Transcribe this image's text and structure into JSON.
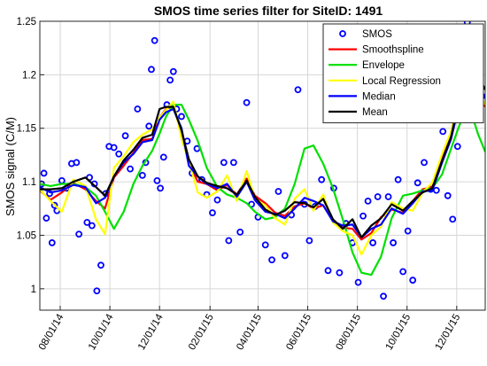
{
  "chart_data": {
    "type": "line",
    "title": "SMOS time series filter for SiteID: 1491",
    "xlabel": "",
    "ylabel": "SMOS signal (C/M)",
    "xlim": [
      "2014-07-07",
      "2016-01-05"
    ],
    "ylim": [
      0.98,
      1.25
    ],
    "yticks": [
      1,
      1.05,
      1.1,
      1.15,
      1.2,
      1.25
    ],
    "ytick_labels": [
      "1",
      "1.05",
      "1.1",
      "1.15",
      "1.2",
      "1.25"
    ],
    "xticks": [
      "2014-08-01",
      "2014-10-01",
      "2014-12-01",
      "2015-02-01",
      "2015-04-01",
      "2015-06-01",
      "2015-08-01",
      "2015-10-01",
      "2015-12-01"
    ],
    "xtick_labels": [
      "08/01/14",
      "10/01/14",
      "12/01/14",
      "02/01/15",
      "04/01/15",
      "06/01/15",
      "08/01/15",
      "10/01/15",
      "12/01/15"
    ],
    "grid": true,
    "legend_position": "top-right",
    "series": [
      {
        "name": "SMOS",
        "style": "markers",
        "color": "#0000ff",
        "x": [
          "2014-07-09",
          "2014-07-12",
          "2014-07-15",
          "2014-07-19",
          "2014-07-22",
          "2014-07-25",
          "2014-07-28",
          "2014-08-03",
          "2014-08-09",
          "2014-08-15",
          "2014-08-21",
          "2014-08-24",
          "2014-09-03",
          "2014-09-06",
          "2014-09-09",
          "2014-09-12",
          "2014-09-15",
          "2014-09-20",
          "2014-09-26",
          "2014-09-30",
          "2014-10-06",
          "2014-10-12",
          "2014-10-20",
          "2014-10-26",
          "2014-11-04",
          "2014-11-10",
          "2014-11-14",
          "2014-11-18",
          "2014-11-21",
          "2014-11-25",
          "2014-11-28",
          "2014-12-02",
          "2014-12-06",
          "2014-12-10",
          "2014-12-14",
          "2014-12-18",
          "2014-12-22",
          "2014-12-28",
          "2015-01-04",
          "2015-01-10",
          "2015-01-16",
          "2015-01-22",
          "2015-01-28",
          "2015-02-04",
          "2015-02-10",
          "2015-02-18",
          "2015-02-24",
          "2015-03-02",
          "2015-03-10",
          "2015-03-18",
          "2015-03-24",
          "2015-04-01",
          "2015-04-10",
          "2015-04-18",
          "2015-04-26",
          "2015-05-04",
          "2015-05-12",
          "2015-05-20",
          "2015-05-28",
          "2015-06-03",
          "2015-06-10",
          "2015-06-18",
          "2015-06-26",
          "2015-07-03",
          "2015-07-10",
          "2015-07-18",
          "2015-07-26",
          "2015-08-02",
          "2015-08-08",
          "2015-08-14",
          "2015-08-20",
          "2015-08-26",
          "2015-09-02",
          "2015-09-08",
          "2015-09-14",
          "2015-09-20",
          "2015-09-26",
          "2015-10-02",
          "2015-10-08",
          "2015-10-14",
          "2015-10-22",
          "2015-10-30",
          "2015-11-06",
          "2015-11-14",
          "2015-11-20",
          "2015-11-26",
          "2015-12-02",
          "2015-12-08",
          "2015-12-14",
          "2015-12-20",
          "2015-12-26",
          "2016-01-01"
        ],
        "values": [
          1.098,
          1.108,
          1.066,
          1.089,
          1.043,
          1.078,
          1.073,
          1.101,
          1.094,
          1.117,
          1.118,
          1.051,
          1.062,
          1.104,
          1.059,
          1.098,
          0.998,
          1.022,
          1.089,
          1.133,
          1.132,
          1.126,
          1.143,
          1.112,
          1.168,
          1.106,
          1.118,
          1.152,
          1.205,
          1.232,
          1.101,
          1.094,
          1.123,
          1.172,
          1.195,
          1.203,
          1.168,
          1.161,
          1.138,
          1.108,
          1.131,
          1.102,
          1.088,
          1.071,
          1.083,
          1.118,
          1.045,
          1.118,
          1.053,
          1.174,
          1.079,
          1.067,
          1.041,
          1.027,
          1.091,
          1.031,
          1.069,
          1.186,
          1.079,
          1.045,
          1.077,
          1.102,
          1.017,
          1.094,
          1.015,
          1.061,
          1.043,
          1.006,
          1.068,
          1.082,
          1.043,
          1.086,
          0.993,
          1.086,
          1.043,
          1.102,
          1.016,
          1.054,
          1.008,
          1.099,
          1.118,
          1.093,
          1.092,
          1.147,
          1.087,
          1.065,
          1.133,
          1.215,
          1.249,
          1.223,
          1.196,
          1.18
        ]
      },
      {
        "name": "Smoothspline",
        "style": "line",
        "color": "#ff0000",
        "x": [
          "2014-07-07",
          "2014-07-20",
          "2014-08-03",
          "2014-08-17",
          "2014-09-01",
          "2014-09-14",
          "2014-09-25",
          "2014-10-06",
          "2014-10-18",
          "2014-10-30",
          "2014-11-10",
          "2014-11-22",
          "2014-12-01",
          "2014-12-09",
          "2014-12-18",
          "2014-12-28",
          "2015-01-06",
          "2015-01-17",
          "2015-01-28",
          "2015-02-10",
          "2015-02-22",
          "2015-03-06",
          "2015-03-18",
          "2015-03-28",
          "2015-04-10",
          "2015-04-22",
          "2015-05-04",
          "2015-05-16",
          "2015-05-28",
          "2015-06-08",
          "2015-06-20",
          "2015-07-02",
          "2015-07-14",
          "2015-07-26",
          "2015-08-06",
          "2015-08-18",
          "2015-08-30",
          "2015-09-12",
          "2015-09-26",
          "2015-10-08",
          "2015-10-20",
          "2015-11-01",
          "2015-11-13",
          "2015-11-24",
          "2015-12-02",
          "2015-12-08",
          "2015-12-14",
          "2015-12-20",
          "2015-12-27",
          "2016-01-05"
        ],
        "values": [
          1.092,
          1.083,
          1.09,
          1.099,
          1.093,
          1.082,
          1.075,
          1.104,
          1.115,
          1.127,
          1.139,
          1.14,
          1.16,
          1.168,
          1.171,
          1.145,
          1.118,
          1.1,
          1.098,
          1.092,
          1.097,
          1.088,
          1.103,
          1.087,
          1.08,
          1.071,
          1.068,
          1.077,
          1.08,
          1.075,
          1.078,
          1.064,
          1.057,
          1.056,
          1.046,
          1.052,
          1.067,
          1.074,
          1.071,
          1.082,
          1.093,
          1.095,
          1.122,
          1.145,
          1.17,
          1.21,
          1.223,
          1.205,
          1.188,
          1.17
        ]
      },
      {
        "name": "Envelope",
        "style": "line",
        "color": "#00e000",
        "x": [
          "2014-07-07",
          "2014-07-20",
          "2014-08-03",
          "2014-08-17",
          "2014-09-01",
          "2014-09-14",
          "2014-09-25",
          "2014-10-06",
          "2014-10-18",
          "2014-10-30",
          "2014-11-10",
          "2014-11-22",
          "2014-12-01",
          "2014-12-09",
          "2014-12-18",
          "2014-12-28",
          "2015-01-06",
          "2015-01-17",
          "2015-01-28",
          "2015-02-10",
          "2015-02-22",
          "2015-03-06",
          "2015-03-18",
          "2015-03-28",
          "2015-04-10",
          "2015-04-22",
          "2015-05-04",
          "2015-05-16",
          "2015-05-28",
          "2015-06-08",
          "2015-06-20",
          "2015-07-02",
          "2015-07-14",
          "2015-07-26",
          "2015-08-06",
          "2015-08-18",
          "2015-08-30",
          "2015-09-12",
          "2015-09-26",
          "2015-10-08",
          "2015-10-20",
          "2015-11-01",
          "2015-11-13",
          "2015-11-24",
          "2015-12-02",
          "2015-12-08",
          "2015-12-14",
          "2015-12-20",
          "2015-12-27",
          "2016-01-05"
        ],
        "values": [
          1.098,
          1.096,
          1.098,
          1.098,
          1.095,
          1.087,
          1.072,
          1.056,
          1.072,
          1.098,
          1.115,
          1.129,
          1.145,
          1.161,
          1.172,
          1.172,
          1.158,
          1.138,
          1.113,
          1.095,
          1.088,
          1.085,
          1.08,
          1.072,
          1.065,
          1.067,
          1.075,
          1.098,
          1.131,
          1.134,
          1.117,
          1.094,
          1.065,
          1.034,
          1.015,
          1.013,
          1.03,
          1.066,
          1.087,
          1.089,
          1.092,
          1.094,
          1.107,
          1.131,
          1.148,
          1.16,
          1.163,
          1.162,
          1.145,
          1.128
        ]
      },
      {
        "name": "Local Regression",
        "style": "line",
        "color": "#ffff00",
        "x": [
          "2014-07-07",
          "2014-07-20",
          "2014-08-03",
          "2014-08-17",
          "2014-09-01",
          "2014-09-14",
          "2014-09-25",
          "2014-10-06",
          "2014-10-18",
          "2014-10-30",
          "2014-11-10",
          "2014-11-22",
          "2014-12-01",
          "2014-12-09",
          "2014-12-18",
          "2014-12-28",
          "2015-01-06",
          "2015-01-17",
          "2015-01-28",
          "2015-02-10",
          "2015-02-22",
          "2015-03-06",
          "2015-03-18",
          "2015-03-28",
          "2015-04-10",
          "2015-04-22",
          "2015-05-04",
          "2015-05-16",
          "2015-05-28",
          "2015-06-08",
          "2015-06-20",
          "2015-07-02",
          "2015-07-14",
          "2015-07-26",
          "2015-08-06",
          "2015-08-18",
          "2015-08-30",
          "2015-09-12",
          "2015-09-26",
          "2015-10-08",
          "2015-10-20",
          "2015-11-01",
          "2015-11-13",
          "2015-11-24",
          "2015-12-02",
          "2015-12-08",
          "2015-12-14",
          "2015-12-20",
          "2015-12-27",
          "2016-01-05"
        ],
        "values": [
          1.093,
          1.082,
          1.072,
          1.102,
          1.096,
          1.065,
          1.051,
          1.113,
          1.124,
          1.137,
          1.144,
          1.149,
          1.16,
          1.167,
          1.175,
          1.14,
          1.119,
          1.09,
          1.085,
          1.091,
          1.106,
          1.082,
          1.11,
          1.084,
          1.078,
          1.066,
          1.06,
          1.084,
          1.093,
          1.073,
          1.088,
          1.062,
          1.054,
          1.05,
          1.032,
          1.05,
          1.058,
          1.081,
          1.075,
          1.073,
          1.09,
          1.099,
          1.126,
          1.147,
          1.18,
          1.225,
          1.228,
          1.21,
          1.185,
          1.172
        ]
      },
      {
        "name": "Median",
        "style": "line",
        "color": "#0000ff",
        "x": [
          "2014-07-07",
          "2014-07-20",
          "2014-08-03",
          "2014-08-17",
          "2014-09-01",
          "2014-09-14",
          "2014-09-25",
          "2014-10-06",
          "2014-10-18",
          "2014-10-30",
          "2014-11-10",
          "2014-11-22",
          "2014-12-01",
          "2014-12-09",
          "2014-12-18",
          "2014-12-28",
          "2015-01-06",
          "2015-01-17",
          "2015-01-28",
          "2015-02-10",
          "2015-02-22",
          "2015-03-06",
          "2015-03-18",
          "2015-03-28",
          "2015-04-10",
          "2015-04-22",
          "2015-05-04",
          "2015-05-16",
          "2015-05-28",
          "2015-06-08",
          "2015-06-20",
          "2015-07-02",
          "2015-07-14",
          "2015-07-26",
          "2015-08-06",
          "2015-08-18",
          "2015-08-30",
          "2015-09-12",
          "2015-09-26",
          "2015-10-08",
          "2015-10-20",
          "2015-11-01",
          "2015-11-13",
          "2015-11-24",
          "2015-12-02",
          "2015-12-08",
          "2015-12-14",
          "2015-12-20",
          "2015-12-27",
          "2016-01-05"
        ],
        "values": [
          1.095,
          1.09,
          1.092,
          1.097,
          1.095,
          1.08,
          1.085,
          1.105,
          1.118,
          1.126,
          1.137,
          1.139,
          1.158,
          1.165,
          1.168,
          1.15,
          1.115,
          1.105,
          1.098,
          1.094,
          1.098,
          1.086,
          1.1,
          1.083,
          1.072,
          1.07,
          1.066,
          1.075,
          1.085,
          1.082,
          1.078,
          1.063,
          1.059,
          1.06,
          1.048,
          1.056,
          1.06,
          1.075,
          1.07,
          1.08,
          1.091,
          1.092,
          1.118,
          1.14,
          1.165,
          1.195,
          1.212,
          1.2,
          1.19,
          1.178
        ]
      },
      {
        "name": "Mean",
        "style": "line",
        "color": "#000000",
        "x": [
          "2014-07-07",
          "2014-07-20",
          "2014-08-03",
          "2014-08-17",
          "2014-09-01",
          "2014-09-14",
          "2014-09-25",
          "2014-10-06",
          "2014-10-18",
          "2014-10-30",
          "2014-11-10",
          "2014-11-22",
          "2014-12-01",
          "2014-12-09",
          "2014-12-18",
          "2014-12-28",
          "2015-01-06",
          "2015-01-17",
          "2015-01-28",
          "2015-02-10",
          "2015-02-22",
          "2015-03-06",
          "2015-03-18",
          "2015-03-28",
          "2015-04-10",
          "2015-04-22",
          "2015-05-04",
          "2015-05-16",
          "2015-05-28",
          "2015-06-08",
          "2015-06-20",
          "2015-07-02",
          "2015-07-14",
          "2015-07-26",
          "2015-08-06",
          "2015-08-18",
          "2015-08-30",
          "2015-09-12",
          "2015-09-26",
          "2015-10-08",
          "2015-10-20",
          "2015-11-01",
          "2015-11-13",
          "2015-11-24",
          "2015-12-02",
          "2015-12-08",
          "2015-12-14",
          "2015-12-20",
          "2015-12-27",
          "2016-01-05"
        ],
        "values": [
          1.093,
          1.093,
          1.094,
          1.1,
          1.104,
          1.095,
          1.087,
          1.105,
          1.12,
          1.13,
          1.141,
          1.144,
          1.168,
          1.17,
          1.17,
          1.148,
          1.121,
          1.105,
          1.099,
          1.096,
          1.094,
          1.088,
          1.101,
          1.086,
          1.074,
          1.069,
          1.073,
          1.081,
          1.08,
          1.076,
          1.084,
          1.065,
          1.056,
          1.065,
          1.048,
          1.059,
          1.066,
          1.079,
          1.073,
          1.082,
          1.09,
          1.094,
          1.12,
          1.142,
          1.17,
          1.2,
          1.215,
          1.202,
          1.2,
          1.186
        ]
      }
    ]
  }
}
